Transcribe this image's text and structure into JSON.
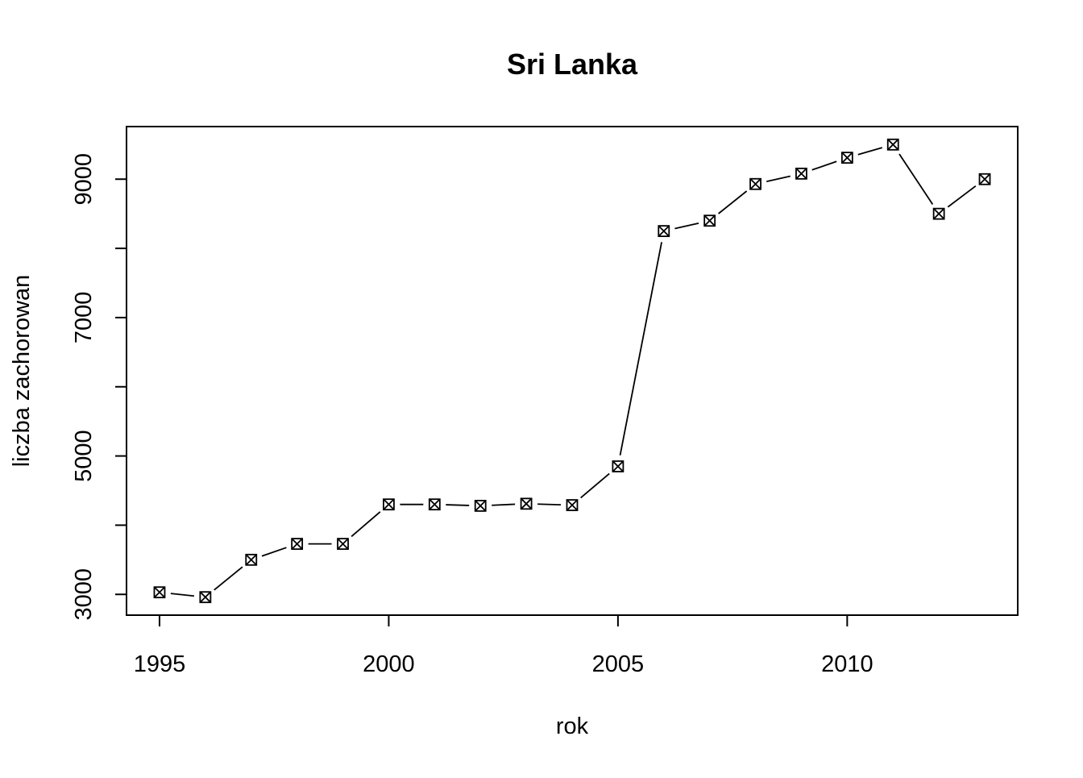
{
  "chart_data": {
    "type": "line",
    "title": "Sri Lanka",
    "xlabel": "rok",
    "ylabel": "liczba zachorowan",
    "x": [
      1995,
      1996,
      1997,
      1998,
      1999,
      2000,
      2001,
      2002,
      2003,
      2004,
      2005,
      2006,
      2007,
      2008,
      2009,
      2010,
      2011,
      2012,
      2013
    ],
    "series": [
      {
        "values": [
          3030,
          2960,
          3500,
          3730,
          3730,
          4300,
          4300,
          4280,
          4310,
          4290,
          4850,
          8250,
          8400,
          8930,
          9080,
          9310,
          9500,
          8500,
          9000
        ]
      }
    ],
    "xlim": [
      1994.28,
      2013.72
    ],
    "ylim": [
      2700,
      9760
    ],
    "xticks": [
      1995,
      2000,
      2005,
      2010
    ],
    "yticks": [
      3000,
      4000,
      5000,
      6000,
      7000,
      8000,
      9000
    ],
    "ytick_labels_shown": [
      3000,
      5000,
      7000,
      9000
    ],
    "marker": "boxed-x",
    "line_style": "solid with gaps at points",
    "grid": false,
    "line_color": "#000000"
  }
}
